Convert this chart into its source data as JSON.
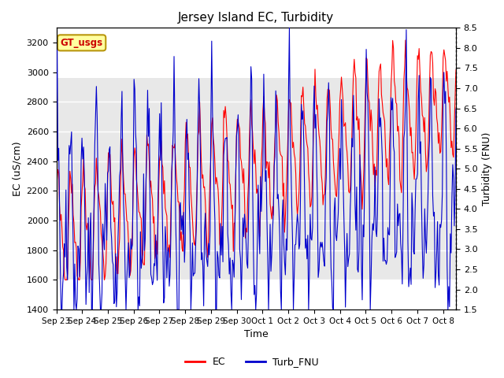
{
  "title": "Jersey Island EC, Turbidity",
  "xlabel": "Time",
  "ylabel_left": "EC (uS/cm)",
  "ylabel_right": "Turbidity (FNU)",
  "xlim_days": [
    0,
    15.5
  ],
  "ylim_left": [
    1400,
    3300
  ],
  "ylim_right": [
    1.5,
    8.5
  ],
  "yticks_left": [
    1400,
    1600,
    1800,
    2000,
    2200,
    2400,
    2600,
    2800,
    3000,
    3200
  ],
  "yticks_right": [
    1.5,
    2.0,
    2.5,
    3.0,
    3.5,
    4.0,
    4.5,
    5.0,
    5.5,
    6.0,
    6.5,
    7.0,
    7.5,
    8.0,
    8.5
  ],
  "xtick_labels": [
    "Sep 23",
    "Sep 24",
    "Sep 25",
    "Sep 26",
    "Sep 27",
    "Sep 28",
    "Sep 29",
    "Sep 30",
    "Oct 1",
    "Oct 2",
    "Oct 3",
    "Oct 4",
    "Oct 5",
    "Oct 6",
    "Oct 7",
    "Oct 8"
  ],
  "xtick_positions": [
    0,
    1,
    2,
    3,
    4,
    5,
    6,
    7,
    8,
    9,
    10,
    11,
    12,
    13,
    14,
    15
  ],
  "ec_color": "#FF0000",
  "turb_color": "#0000CC",
  "annotation_text": "GT_usgs",
  "annotation_facecolor": "#FFFFA0",
  "annotation_edgecolor": "#B8960C",
  "annotation_textcolor": "#CC0000",
  "shading_color": "#E8E8E8",
  "shading_ymin": 1600,
  "shading_ymax": 2960,
  "legend_labels": [
    "EC",
    "Turb_FNU"
  ],
  "background_color": "#FFFFFF",
  "grid_color": "#FFFFFF",
  "seed": 42
}
